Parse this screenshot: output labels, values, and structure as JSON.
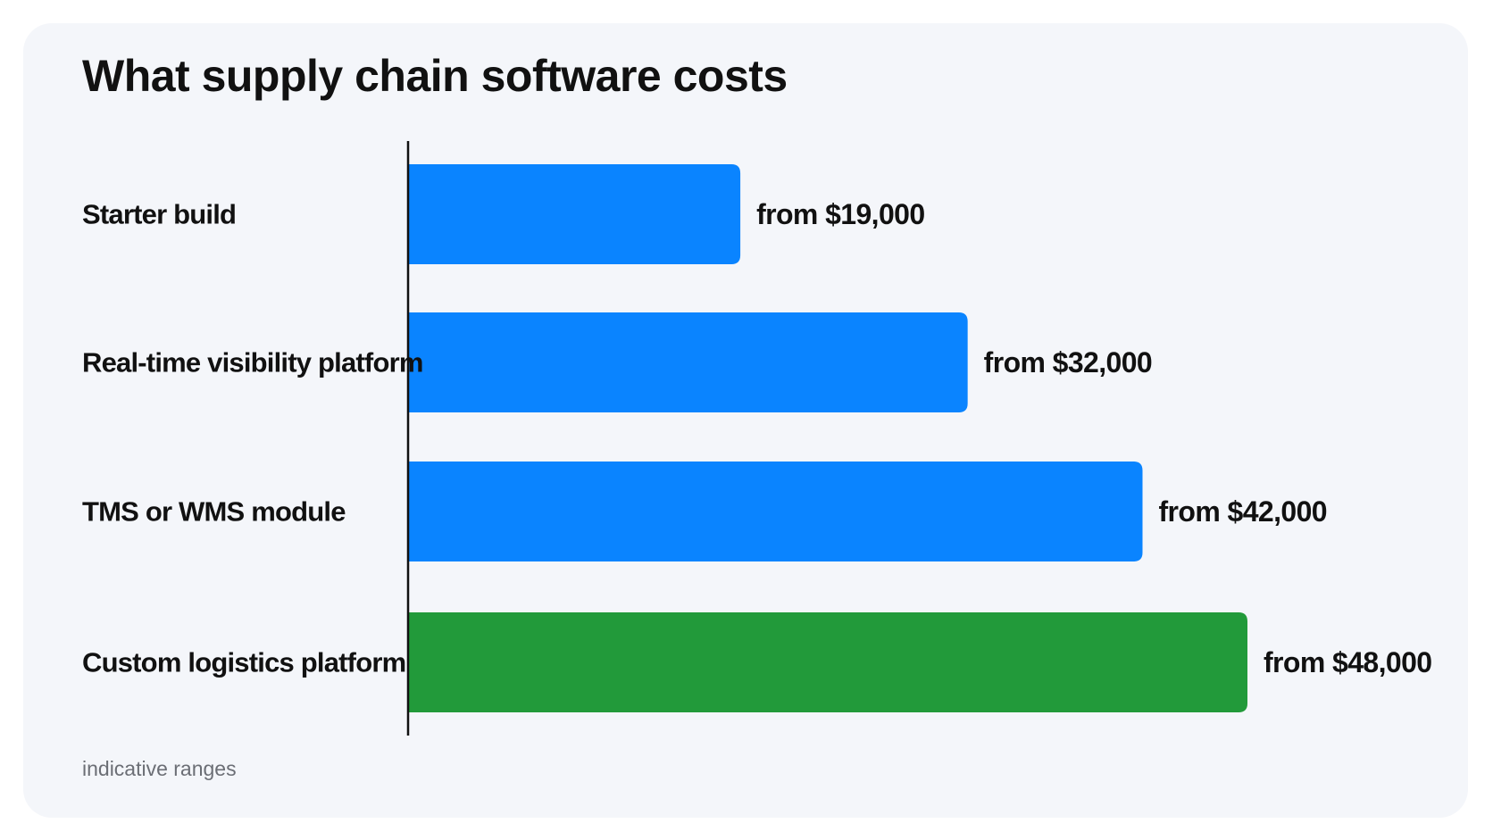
{
  "chart_data": {
    "type": "bar",
    "orientation": "horizontal",
    "title": "What supply chain software costs",
    "footnote": "indicative ranges",
    "categories": [
      "Starter build",
      "Real-time visibility platform",
      "TMS or WMS module",
      "Custom logistics platform"
    ],
    "values": [
      19000,
      32000,
      42000,
      48000
    ],
    "value_labels": [
      "from $19,000",
      "from $32,000",
      "from $42,000",
      "from $48,000"
    ],
    "bar_colors": [
      "#0a84ff",
      "#0a84ff",
      "#0a84ff",
      "#229a3a"
    ],
    "xlim": [
      0,
      48000
    ],
    "grid": false,
    "xlabel": "",
    "ylabel": ""
  }
}
